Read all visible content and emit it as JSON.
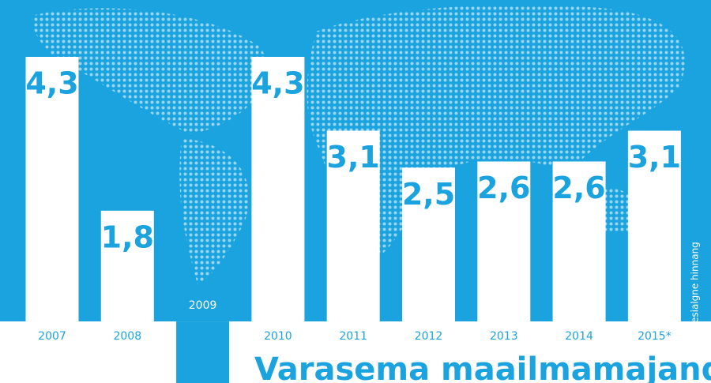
{
  "chart_data": {
    "type": "bar",
    "title": "Varasema maailmamajandus",
    "note": "*esialgne hinnang",
    "categories": [
      "2007",
      "2008",
      "2009",
      "2010",
      "2011",
      "2012",
      "2013",
      "2014",
      "2015*"
    ],
    "values": [
      4.3,
      1.8,
      -1.0,
      4.3,
      3.1,
      2.5,
      2.6,
      2.6,
      3.1
    ],
    "value_labels": [
      "4,3",
      "1,8",
      null,
      "4,3",
      "3,1",
      "2,5",
      "2,6",
      "2,6",
      "3,1"
    ],
    "color": "#ffffff",
    "ylim": [
      -1.0,
      4.3
    ]
  }
}
